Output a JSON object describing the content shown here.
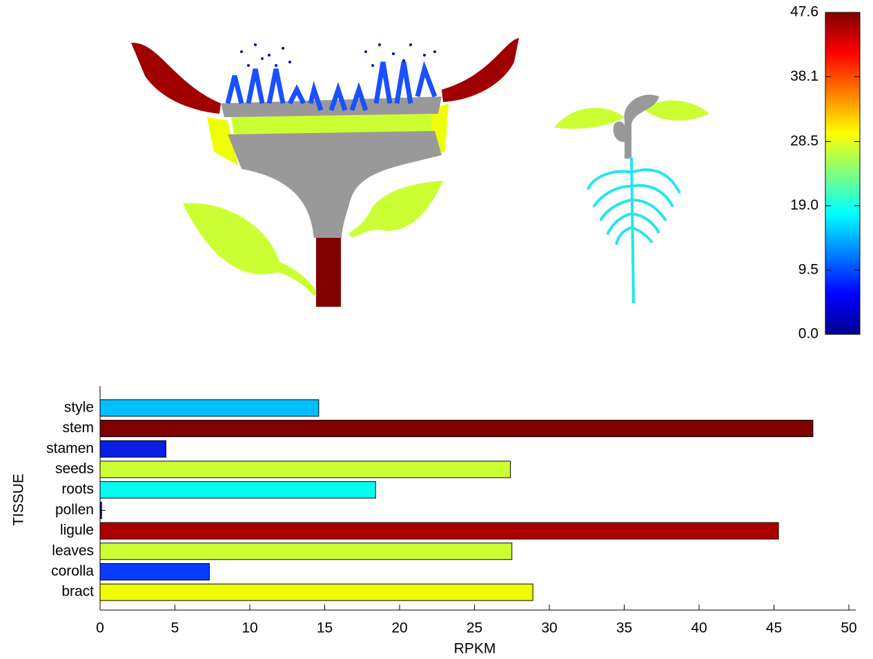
{
  "chart_data": [
    {
      "type": "barh",
      "categories": [
        "style",
        "stem",
        "stamen",
        "seeds",
        "roots",
        "pollen",
        "ligule",
        "leaves",
        "corolla",
        "bract"
      ],
      "values": [
        14.6,
        47.6,
        4.4,
        27.4,
        18.4,
        0.1,
        45.3,
        27.5,
        7.3,
        28.9
      ],
      "colors": [
        "#00bfff",
        "#800000",
        "#0a1ee6",
        "#ccff33",
        "#00ffee",
        "#00008f",
        "#aa0000",
        "#ccff33",
        "#0a3cff",
        "#eeff00"
      ],
      "xlabel": "RPKM",
      "ylabel": "TISSUE",
      "xlim": [
        0,
        50
      ],
      "xticks": [
        0,
        5,
        10,
        15,
        20,
        25,
        30,
        35,
        40,
        45,
        50
      ]
    },
    {
      "type": "colorbar",
      "ylim": [
        0,
        47.6
      ],
      "yticks": [
        {
          "value": 0,
          "label": "0.0"
        },
        9.5,
        {
          "value": 19,
          "label": "19.0"
        },
        28.5,
        38.1,
        47.6
      ]
    }
  ]
}
